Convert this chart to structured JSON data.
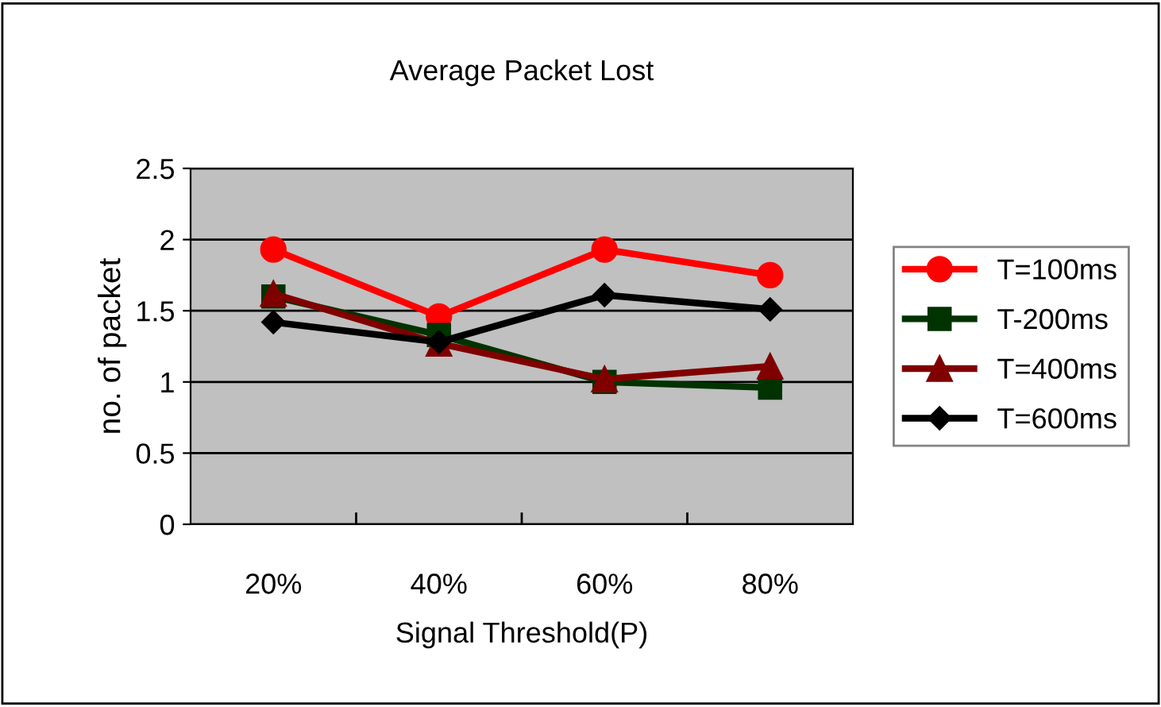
{
  "chart_data": {
    "type": "line",
    "title": "Average Packet Lost",
    "xlabel": "Signal Threshold(P)",
    "ylabel": "no. of packet",
    "categories": [
      "20%",
      "40%",
      "60%",
      "80%"
    ],
    "series": [
      {
        "name": "T=100ms",
        "color": "#ff0000",
        "marker": "circle",
        "values": [
          1.93,
          1.46,
          1.93,
          1.75
        ]
      },
      {
        "name": "T-200ms",
        "color": "#003300",
        "marker": "square",
        "values": [
          1.6,
          1.33,
          1.0,
          0.96
        ]
      },
      {
        "name": "T=400ms",
        "color": "#800000",
        "marker": "triangle",
        "values": [
          1.62,
          1.27,
          1.02,
          1.11
        ]
      },
      {
        "name": "T=600ms",
        "color": "#000000",
        "marker": "diamond",
        "values": [
          1.42,
          1.28,
          1.61,
          1.51
        ]
      }
    ],
    "ylim": [
      0,
      2.5
    ],
    "yticks": [
      0,
      0.5,
      1,
      1.5,
      2,
      2.5
    ],
    "grid": "y",
    "legend": "right",
    "line_style": "solid"
  }
}
